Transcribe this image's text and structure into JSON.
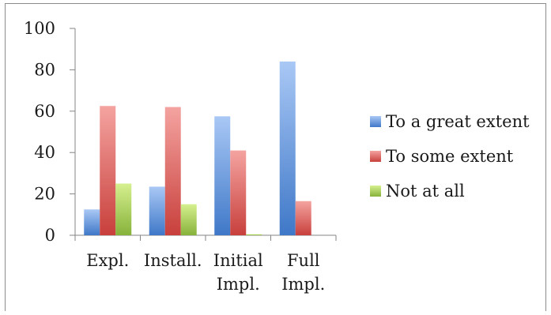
{
  "chart_data": {
    "type": "bar",
    "categories": [
      [
        "Expl."
      ],
      [
        "Install."
      ],
      [
        "Initial",
        "Impl."
      ],
      [
        "Full",
        "Impl."
      ]
    ],
    "series": [
      {
        "name": "To a great extent",
        "values": [
          12.5,
          23.5,
          57.5,
          84
        ],
        "color": "#4f81bd"
      },
      {
        "name": "To some extent",
        "values": [
          62.5,
          62,
          41,
          16.5
        ],
        "color": "#c0504d"
      },
      {
        "name": "Not at all",
        "values": [
          25,
          15,
          0.5,
          0
        ],
        "color": "#9bbb59"
      }
    ],
    "ylim": [
      0,
      100
    ],
    "yticks": [
      0,
      20,
      40,
      60,
      80,
      100
    ],
    "grid": false,
    "legend_position": "right",
    "title": "",
    "xlabel": "",
    "ylabel": ""
  }
}
